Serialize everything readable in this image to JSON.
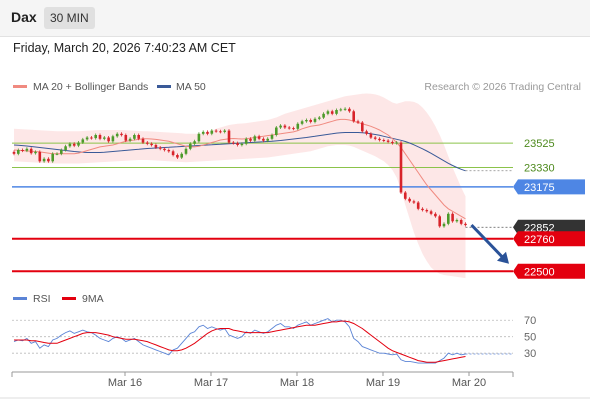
{
  "header": {
    "ticker": "Dax",
    "timeframe": "30 MIN"
  },
  "datetime": "Friday, March 20, 2026 7:40:23 AM CET",
  "copyright": "Research © 2026 Trading Central",
  "colors": {
    "up": "#4c9a2a",
    "down": "#d8232a",
    "ma20": "#f08a80",
    "ma50": "#3a5a98",
    "bands": "#fde3e3",
    "support": "#e3000f",
    "pivot": "#4e86e4",
    "resistance": "#8bc34a",
    "arrow": "#2a5298",
    "rsi": "#5b84d6",
    "rsi_ma": "#e3000f"
  },
  "chart_data": [
    {
      "type": "candlestick",
      "title": "Dax",
      "legend": [
        {
          "name": "MA 20 + Bollinger Bands",
          "color": "#f08a80"
        },
        {
          "name": "MA 50",
          "color": "#3a5a98"
        }
      ],
      "legend_position": "top-left",
      "x_ticks": [
        "Mar 16",
        "Mar 17",
        "Mar 18",
        "Mar 19",
        "Mar 20"
      ],
      "ylim": [
        22390,
        23870
      ],
      "closes": [
        23440,
        23470,
        23465,
        23480,
        23445,
        23455,
        23380,
        23400,
        23380,
        23440,
        23440,
        23470,
        23500,
        23520,
        23505,
        23530,
        23555,
        23570,
        23565,
        23590,
        23560,
        23570,
        23540,
        23580,
        23600,
        23590,
        23545,
        23560,
        23590,
        23560,
        23530,
        23520,
        23510,
        23490,
        23480,
        23470,
        23460,
        23430,
        23410,
        23440,
        23480,
        23520,
        23540,
        23600,
        23615,
        23600,
        23625,
        23620,
        23615,
        23625,
        23530,
        23525,
        23510,
        23520,
        23560,
        23545,
        23580,
        23560,
        23545,
        23560,
        23590,
        23650,
        23665,
        23650,
        23645,
        23640,
        23680,
        23700,
        23710,
        23695,
        23720,
        23730,
        23760,
        23780,
        23760,
        23790,
        23795,
        23800,
        23780,
        23700,
        23690,
        23620,
        23600,
        23570,
        23560,
        23550,
        23545,
        23535,
        23525,
        23530,
        23130,
        23080,
        23060,
        23050,
        23000,
        22990,
        22980,
        22960,
        22940,
        22860,
        22880,
        22960,
        22900,
        22910,
        22880,
        22870
      ],
      "ma20": [
        23470,
        23468,
        23465,
        23462,
        23460,
        23458,
        23455,
        23450,
        23445,
        23440,
        23440,
        23440,
        23440,
        23440,
        23440,
        23445,
        23455,
        23465,
        23475,
        23485,
        23495,
        23500,
        23505,
        23510,
        23520,
        23530,
        23540,
        23545,
        23550,
        23555,
        23560,
        23560,
        23558,
        23555,
        23550,
        23545,
        23540,
        23530,
        23520,
        23510,
        23500,
        23495,
        23495,
        23500,
        23510,
        23520,
        23530,
        23540,
        23550,
        23555,
        23560,
        23562,
        23560,
        23558,
        23560,
        23565,
        23570,
        23575,
        23580,
        23585,
        23590,
        23595,
        23600,
        23605,
        23610,
        23615,
        23625,
        23640,
        23650,
        23660,
        23665,
        23670,
        23680,
        23690,
        23700,
        23710,
        23715,
        23715,
        23710,
        23700,
        23690,
        23680,
        23670,
        23660,
        23645,
        23630,
        23610,
        23590,
        23560,
        23530,
        23490,
        23440,
        23390,
        23340,
        23290,
        23240,
        23190,
        23150,
        23110,
        23070,
        23030,
        23000,
        22980,
        22960,
        22940,
        22920
      ],
      "band_upper": [
        23640,
        23638,
        23636,
        23634,
        23632,
        23630,
        23628,
        23626,
        23624,
        23622,
        23620,
        23620,
        23620,
        23620,
        23620,
        23620,
        23622,
        23624,
        23626,
        23628,
        23630,
        23630,
        23630,
        23630,
        23630,
        23630,
        23628,
        23626,
        23624,
        23622,
        23620,
        23620,
        23618,
        23616,
        23614,
        23612,
        23610,
        23608,
        23606,
        23604,
        23600,
        23600,
        23600,
        23600,
        23605,
        23615,
        23625,
        23640,
        23650,
        23660,
        23670,
        23675,
        23680,
        23682,
        23685,
        23690,
        23695,
        23700,
        23705,
        23710,
        23720,
        23730,
        23745,
        23760,
        23770,
        23780,
        23790,
        23800,
        23810,
        23820,
        23830,
        23840,
        23850,
        23860,
        23870,
        23880,
        23890,
        23900,
        23905,
        23910,
        23915,
        23920,
        23922,
        23920,
        23915,
        23905,
        23890,
        23870,
        23850,
        23840,
        23850,
        23860,
        23860,
        23855,
        23840,
        23810,
        23770,
        23720,
        23660,
        23590,
        23510,
        23420,
        23330,
        23250,
        23170,
        23100
      ],
      "band_lower": [
        23380,
        23378,
        23376,
        23374,
        23372,
        23370,
        23368,
        23366,
        23364,
        23362,
        23362,
        23362,
        23362,
        23362,
        23362,
        23362,
        23364,
        23366,
        23368,
        23370,
        23372,
        23374,
        23376,
        23378,
        23380,
        23382,
        23384,
        23386,
        23388,
        23390,
        23390,
        23390,
        23388,
        23386,
        23384,
        23382,
        23380,
        23378,
        23376,
        23374,
        23372,
        23374,
        23376,
        23378,
        23380,
        23382,
        23384,
        23386,
        23388,
        23390,
        23392,
        23394,
        23396,
        23398,
        23400,
        23402,
        23404,
        23406,
        23408,
        23410,
        23415,
        23420,
        23425,
        23430,
        23435,
        23440,
        23445,
        23450,
        23455,
        23460,
        23470,
        23480,
        23490,
        23500,
        23505,
        23510,
        23510,
        23510,
        23505,
        23495,
        23480,
        23465,
        23450,
        23435,
        23420,
        23400,
        23380,
        23350,
        23310,
        23250,
        23150,
        23030,
        22920,
        22810,
        22720,
        22640,
        22580,
        22530,
        22500,
        22480,
        22470,
        22465,
        22460,
        22455,
        22450,
        22445
      ],
      "ma50": [
        23510,
        23508,
        23505,
        23502,
        23498,
        23494,
        23490,
        23486,
        23482,
        23478,
        23474,
        23470,
        23466,
        23462,
        23458,
        23455,
        23452,
        23450,
        23450,
        23450,
        23450,
        23452,
        23455,
        23458,
        23461,
        23464,
        23467,
        23470,
        23473,
        23476,
        23479,
        23482,
        23484,
        23486,
        23488,
        23490,
        23492,
        23494,
        23496,
        23498,
        23500,
        23502,
        23504,
        23506,
        23508,
        23510,
        23512,
        23514,
        23516,
        23518,
        23520,
        23522,
        23524,
        23526,
        23528,
        23530,
        23532,
        23534,
        23536,
        23538,
        23540,
        23543,
        23546,
        23550,
        23554,
        23558,
        23562,
        23566,
        23570,
        23575,
        23580,
        23585,
        23590,
        23595,
        23600,
        23605,
        23608,
        23610,
        23610,
        23610,
        23610,
        23608,
        23605,
        23600,
        23594,
        23588,
        23580,
        23572,
        23564,
        23556,
        23548,
        23538,
        23526,
        23512,
        23496,
        23480,
        23462,
        23444,
        23424,
        23404,
        23384,
        23364,
        23346,
        23330,
        23316,
        23304
      ],
      "levels": [
        {
          "value": 23525,
          "label": "23525",
          "kind": "resistance"
        },
        {
          "value": 23330,
          "label": "23330",
          "kind": "resistance"
        },
        {
          "value": 23175,
          "label": "23175",
          "kind": "pivot"
        },
        {
          "value": 22852,
          "label": "22852",
          "kind": "last"
        },
        {
          "value": 22760,
          "label": "22760",
          "kind": "support"
        },
        {
          "value": 22500,
          "label": "22500",
          "kind": "support"
        }
      ],
      "forecast_arrow": {
        "from": 22870,
        "to": 22560
      }
    },
    {
      "type": "line",
      "title": "RSI",
      "legend": [
        {
          "name": "RSI",
          "color": "#5b84d6"
        },
        {
          "name": "9MA",
          "color": "#e3000f"
        }
      ],
      "ylim": [
        12,
        80
      ],
      "y_ticks": [
        70,
        50,
        30
      ],
      "rsi": [
        44,
        46,
        45,
        48,
        42,
        44,
        36,
        40,
        38,
        46,
        48,
        52,
        55,
        57,
        54,
        56,
        58,
        56,
        55,
        52,
        48,
        46,
        44,
        48,
        50,
        48,
        44,
        46,
        48,
        44,
        40,
        38,
        36,
        34,
        32,
        30,
        28,
        34,
        36,
        42,
        48,
        54,
        56,
        62,
        64,
        60,
        62,
        60,
        58,
        60,
        52,
        50,
        48,
        50,
        56,
        54,
        58,
        56,
        54,
        56,
        60,
        64,
        66,
        62,
        62,
        60,
        64,
        66,
        68,
        64,
        66,
        68,
        70,
        72,
        68,
        70,
        70,
        68,
        62,
        48,
        44,
        38,
        36,
        34,
        32,
        30,
        30,
        29,
        28,
        29,
        22,
        20,
        20,
        19,
        18,
        18,
        18,
        18,
        18,
        21,
        24,
        30,
        28,
        30,
        28,
        29
      ],
      "rsi_ma": [
        46,
        46,
        46,
        46,
        45,
        45,
        44,
        43,
        42,
        42,
        42,
        44,
        46,
        48,
        50,
        52,
        54,
        55,
        55,
        55,
        54,
        53,
        52,
        50,
        49,
        48,
        47,
        47,
        47,
        46,
        45,
        44,
        42,
        40,
        38,
        36,
        34,
        33,
        33,
        34,
        36,
        39,
        42,
        46,
        50,
        54,
        57,
        59,
        60,
        60,
        60,
        58,
        57,
        56,
        55,
        55,
        55,
        55,
        55,
        55,
        56,
        57,
        58,
        59,
        60,
        61,
        62,
        63,
        64,
        64,
        64,
        65,
        66,
        67,
        68,
        68,
        69,
        69,
        68,
        66,
        63,
        60,
        56,
        52,
        48,
        44,
        40,
        36,
        33,
        31,
        29,
        27,
        25,
        23,
        21,
        20,
        19,
        19,
        19,
        20,
        21,
        22,
        23,
        24,
        25,
        26
      ]
    }
  ]
}
